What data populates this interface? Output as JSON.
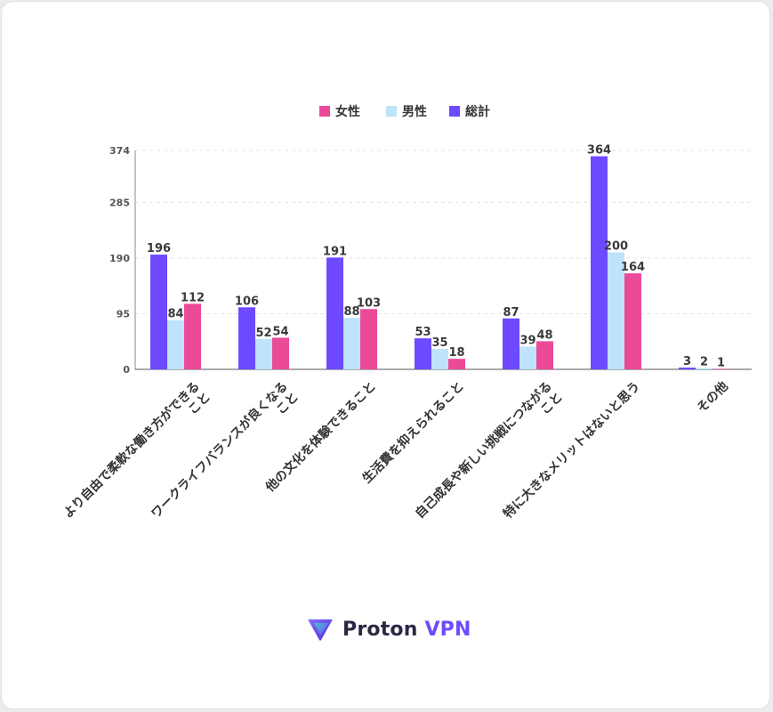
{
  "chart_data": {
    "type": "bar",
    "categories": [
      "より自由で柔軟な働き方ができること",
      "ワークライフバランスが良くなること",
      "他の文化を体験できること",
      "生活費を抑えられること",
      "自己成長や新しい挑戦につながること",
      "特に大きなメリットはないと思う",
      "その他"
    ],
    "category_lines": [
      [
        "より自由で柔軟な働き方ができる",
        "こと"
      ],
      [
        "ワークライフバランスが良くなる",
        "こと"
      ],
      [
        "他の文化を体験できること"
      ],
      [
        "生活費を抑えられること"
      ],
      [
        "自己成長や新しい挑戦につながる",
        "こと"
      ],
      [
        "特に大きなメリットはないと思う"
      ],
      [
        "その他"
      ]
    ],
    "series": [
      {
        "name": "総計",
        "color": "#6d4aff",
        "values": [
          196,
          106,
          191,
          53,
          87,
          364,
          3
        ]
      },
      {
        "name": "男性",
        "color": "#bfe3fb",
        "values": [
          84,
          52,
          88,
          35,
          39,
          200,
          2
        ]
      },
      {
        "name": "女性",
        "color": "#ea4a98",
        "values": [
          112,
          54,
          103,
          18,
          48,
          164,
          1
        ]
      }
    ],
    "legend_order": [
      "女性",
      "男性",
      "総計"
    ],
    "legend_position": "top-center",
    "yticks": [
      0,
      95,
      190,
      285,
      374
    ],
    "ylim": [
      0,
      374
    ],
    "grid": "horizontal-dashed",
    "show_data_labels": true
  },
  "brand": {
    "name": "Proton",
    "accent": "VPN",
    "logo_icon": "proton-vpn-logo-icon"
  }
}
